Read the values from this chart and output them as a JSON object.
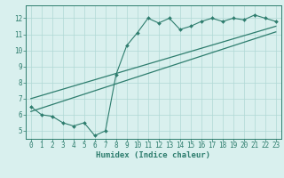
{
  "xlabel": "Humidex (Indice chaleur)",
  "x_data": [
    0,
    1,
    2,
    3,
    4,
    5,
    6,
    7,
    8,
    9,
    10,
    11,
    12,
    13,
    14,
    15,
    16,
    17,
    18,
    19,
    20,
    21,
    22,
    23
  ],
  "y_data": [
    6.5,
    6.0,
    5.9,
    5.5,
    5.3,
    5.5,
    4.7,
    5.0,
    8.5,
    10.3,
    11.1,
    12.0,
    11.7,
    12.0,
    11.3,
    11.5,
    11.8,
    12.0,
    11.8,
    12.0,
    11.9,
    12.2,
    12.0,
    11.8
  ],
  "line1_x": [
    0,
    23
  ],
  "line1_y": [
    6.2,
    11.15
  ],
  "line2_x": [
    0,
    23
  ],
  "line2_y": [
    7.0,
    11.5
  ],
  "xlim": [
    -0.5,
    23.5
  ],
  "ylim": [
    4.5,
    12.8
  ],
  "xticks": [
    0,
    1,
    2,
    3,
    4,
    5,
    6,
    7,
    8,
    9,
    10,
    11,
    12,
    13,
    14,
    15,
    16,
    17,
    18,
    19,
    20,
    21,
    22,
    23
  ],
  "yticks": [
    5,
    6,
    7,
    8,
    9,
    10,
    11,
    12
  ],
  "color": "#2e7d6e",
  "bg_color": "#d9f0ee",
  "grid_color": "#b0d8d5",
  "label_fontsize": 6.5,
  "tick_fontsize": 5.5
}
